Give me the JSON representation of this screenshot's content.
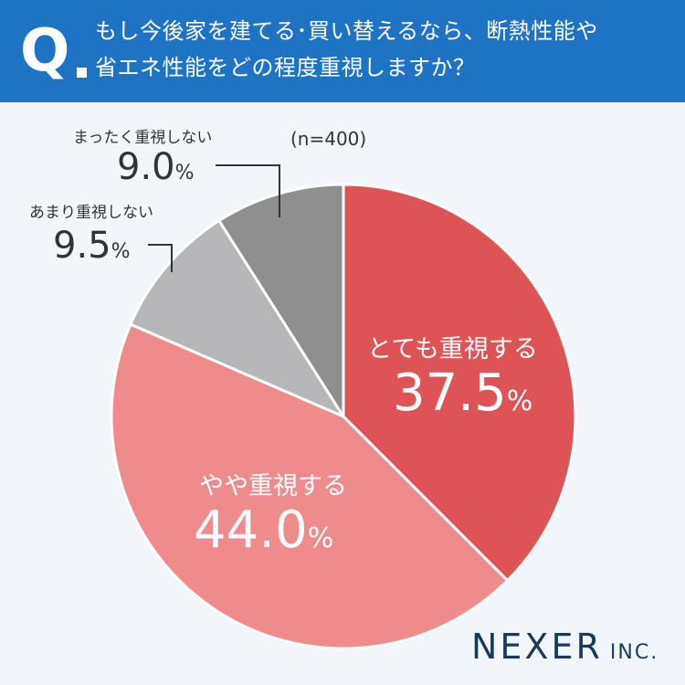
{
  "question": {
    "mark": "Q",
    "line1": "もし今後家を建てる･買い替えるなら、断熱性能や",
    "line2": "省エネ性能をどの程度重視しますか？"
  },
  "sample_size": "(n=400)",
  "chart_data": {
    "type": "pie",
    "start_angle_deg": 0,
    "direction": "clockwise",
    "slices": [
      {
        "label": "とても重視する",
        "value": 37.5,
        "display": "37.5",
        "unit": "%",
        "color": "#de5353"
      },
      {
        "label": "やや重視する",
        "value": 44.0,
        "display": "44.0",
        "unit": "%",
        "color": "#ef8b8b"
      },
      {
        "label": "あまり重視しない",
        "value": 9.5,
        "display": "9.5",
        "unit": "%",
        "color": "#b7b6b8"
      },
      {
        "label": "まったく重視しない",
        "value": 9.0,
        "display": "9.0",
        "unit": "%",
        "color": "#8f8f8f"
      }
    ]
  },
  "brand": {
    "name": "NEXER",
    "suffix": "INC."
  }
}
